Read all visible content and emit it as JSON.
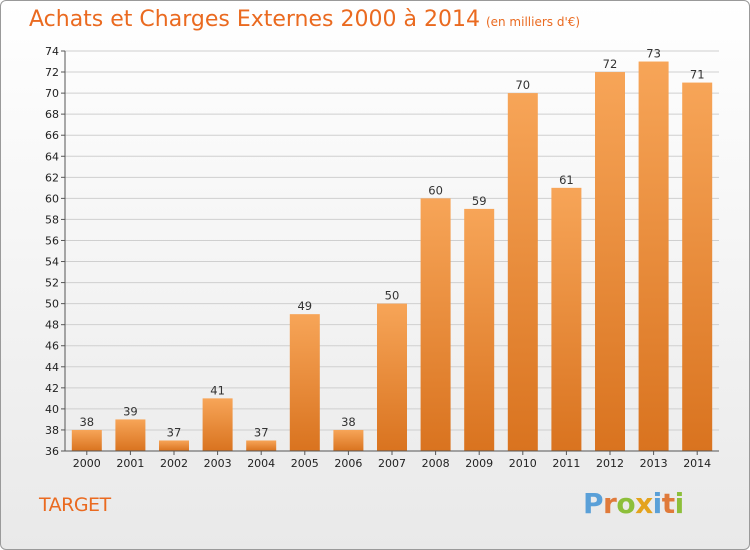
{
  "title": "Achats et Charges Externes 2000 à 2014",
  "subtitle": "(en milliers d'€)",
  "entity": "TARGET",
  "logo": {
    "text": "Proxiti",
    "letters": [
      {
        "ch": "P",
        "color": "#5aa0d8"
      },
      {
        "ch": "r",
        "color": "#e07a3a"
      },
      {
        "ch": "o",
        "color": "#8dbf3a"
      },
      {
        "ch": "x",
        "color": "#e4a31c"
      },
      {
        "ch": "i",
        "color": "#5aa0d8"
      },
      {
        "ch": "t",
        "color": "#e07a3a"
      },
      {
        "ch": "i",
        "color": "#8dbf3a"
      }
    ]
  },
  "colors": {
    "accent": "#ea6a20",
    "bar_light": "#f7a558",
    "bar_dark": "#d9731f",
    "grid": "#cfcfcf"
  },
  "chart_data": {
    "type": "bar",
    "title": "Achats et Charges Externes 2000 à 2014",
    "subtitle": "(en milliers d'€)",
    "xlabel": "",
    "ylabel": "",
    "categories": [
      "2000",
      "2001",
      "2002",
      "2003",
      "2004",
      "2005",
      "2006",
      "2007",
      "2008",
      "2009",
      "2010",
      "2011",
      "2012",
      "2013",
      "2014"
    ],
    "values": [
      38,
      39,
      37,
      41,
      37,
      49,
      38,
      50,
      60,
      59,
      70,
      61,
      72,
      73,
      71
    ],
    "ylim": [
      36,
      74
    ],
    "yticks": [
      36,
      38,
      40,
      42,
      44,
      46,
      48,
      50,
      52,
      54,
      56,
      58,
      60,
      62,
      64,
      66,
      68,
      70,
      72,
      74
    ],
    "grid": true,
    "data_labels": true
  }
}
